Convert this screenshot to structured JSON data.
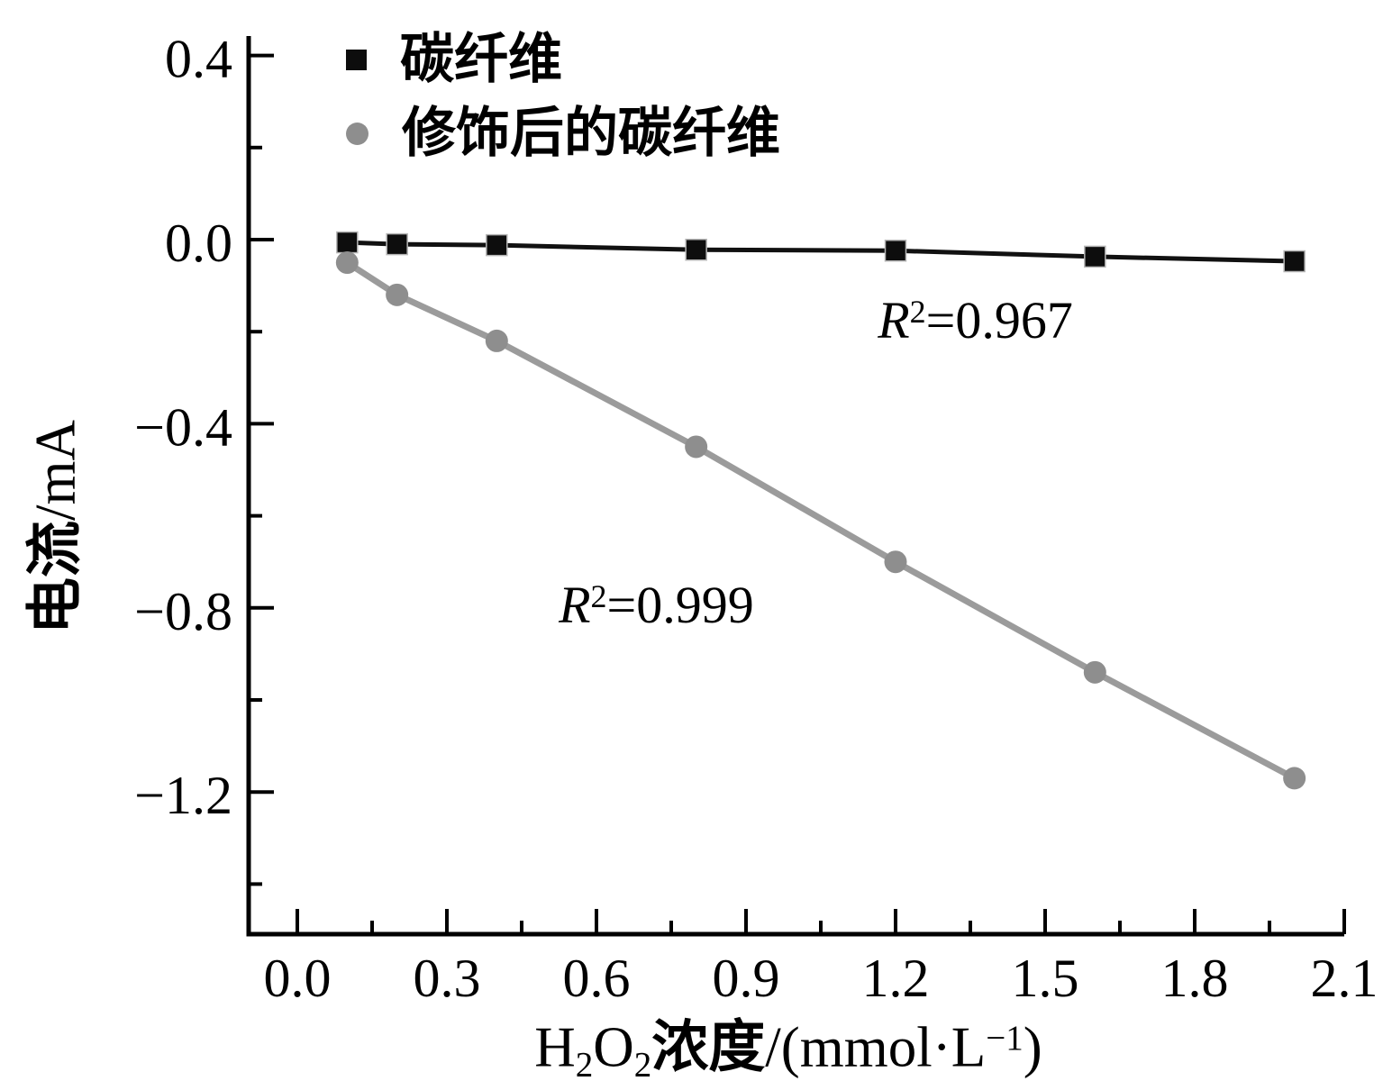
{
  "chart_data": {
    "type": "line",
    "title": "",
    "ylabel_parts": {
      "cjk": "电流",
      "unit": "/mA"
    },
    "ylabel_text": "电流/mA",
    "xlabel_parts": {
      "el1": "H",
      "el1_sub": "2",
      "el2": "O",
      "el2_sub": "2",
      "cjk": "浓度",
      "unit_pre": "/(mmol·L",
      "unit_sup": "−1",
      "unit_post": ")"
    },
    "xlabel_text": "H2O2浓度/(mmol·L−1)",
    "xlim": [
      -0.1,
      2.1
    ],
    "ylim": [
      -1.51,
      0.44
    ],
    "grid": false,
    "legend_position": "top-left-inside",
    "x_axis": {
      "major_ticks": [
        {
          "value": 0.0,
          "label": "0.0"
        },
        {
          "value": 0.3,
          "label": "0.3"
        },
        {
          "value": 0.6,
          "label": "0.6"
        },
        {
          "value": 0.9,
          "label": "0.9"
        },
        {
          "value": 1.2,
          "label": "1.2"
        },
        {
          "value": 1.5,
          "label": "1.5"
        },
        {
          "value": 1.8,
          "label": "1.8"
        },
        {
          "value": 2.1,
          "label": "2.1"
        }
      ],
      "minor_tick_values": [
        0.15,
        0.45,
        0.75,
        1.05,
        1.35,
        1.65,
        1.95
      ]
    },
    "y_axis": {
      "major_ticks": [
        {
          "value": 0.4,
          "label": "0.4"
        },
        {
          "value": 0.0,
          "label": "0.0"
        },
        {
          "value": -0.4,
          "label": "−0.4"
        },
        {
          "value": -0.8,
          "label": "−0.8"
        },
        {
          "value": -1.2,
          "label": "−1.2"
        }
      ],
      "minor_tick_values": [
        0.2,
        -0.2,
        -0.6,
        -1.0,
        -1.4
      ]
    },
    "x": [
      0.1,
      0.2,
      0.4,
      0.8,
      1.2,
      1.6,
      2.0
    ],
    "series": [
      {
        "name": "碳纤维",
        "marker": "square",
        "marker_color": "#0d0d0d",
        "line_color": "#111111",
        "values": [
          -0.006,
          -0.01,
          -0.012,
          -0.022,
          -0.024,
          -0.037,
          -0.047
        ],
        "r_squared": "0.967"
      },
      {
        "name": "修饰后的碳纤维",
        "marker": "circle",
        "marker_color": "#8e8e8e",
        "line_color": "#9b9b9b",
        "values": [
          -0.05,
          -0.12,
          -0.22,
          -0.45,
          -0.7,
          -0.94,
          -1.17
        ],
        "r_squared": "0.999"
      }
    ],
    "annotations": [
      {
        "r": "R",
        "exp": "2",
        "rest": "=0.967",
        "x": 1.36,
        "y": -0.176
      },
      {
        "r": "R",
        "exp": "2",
        "rest": "=0.999",
        "x": 0.72,
        "y": -0.795
      }
    ]
  },
  "legend": {
    "items": [
      {
        "label": "碳纤维",
        "marker": "square",
        "color": "#0d0d0d"
      },
      {
        "label": "修饰后的碳纤维",
        "marker": "circle",
        "color": "#8e8e8e"
      }
    ]
  }
}
